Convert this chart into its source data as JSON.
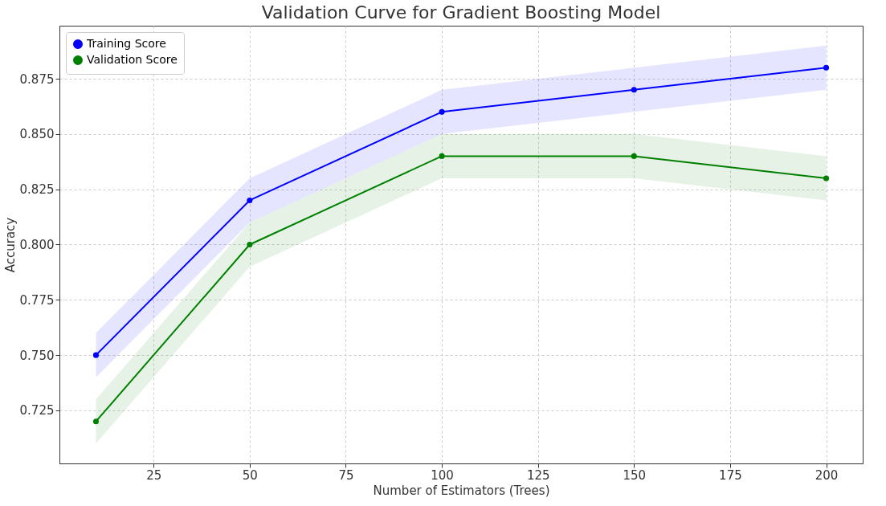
{
  "chart_data": {
    "type": "line",
    "title": "Validation Curve for Gradient Boosting Model",
    "xlabel": "Number of Estimators (Trees)",
    "ylabel": "Accuracy",
    "x": [
      10,
      50,
      100,
      150,
      200
    ],
    "series": [
      {
        "name": "Training Score",
        "color": "#0000ff",
        "values": [
          0.75,
          0.82,
          0.86,
          0.87,
          0.88
        ],
        "lower": [
          0.74,
          0.81,
          0.85,
          0.86,
          0.87
        ],
        "upper": [
          0.76,
          0.83,
          0.87,
          0.88,
          0.89
        ]
      },
      {
        "name": "Validation Score",
        "color": "#008000",
        "values": [
          0.72,
          0.8,
          0.84,
          0.84,
          0.83
        ],
        "lower": [
          0.71,
          0.79,
          0.83,
          0.83,
          0.82
        ],
        "upper": [
          0.73,
          0.81,
          0.85,
          0.85,
          0.84
        ]
      }
    ],
    "xlim": [
      0.5,
      209.5
    ],
    "xticks": [
      25,
      50,
      75,
      100,
      125,
      150,
      175,
      200
    ],
    "ylim": [
      0.701,
      0.899
    ],
    "yticks": [
      {
        "value": 0.725,
        "label": "0.725"
      },
      {
        "value": 0.75,
        "label": "0.750"
      },
      {
        "value": 0.775,
        "label": "0.775"
      },
      {
        "value": 0.8,
        "label": "0.800"
      },
      {
        "value": 0.825,
        "label": "0.825"
      },
      {
        "value": 0.85,
        "label": "0.850"
      },
      {
        "value": 0.875,
        "label": "0.875"
      }
    ],
    "grid": true,
    "legend": "top left",
    "marker": "circle",
    "line_style": "solid"
  }
}
